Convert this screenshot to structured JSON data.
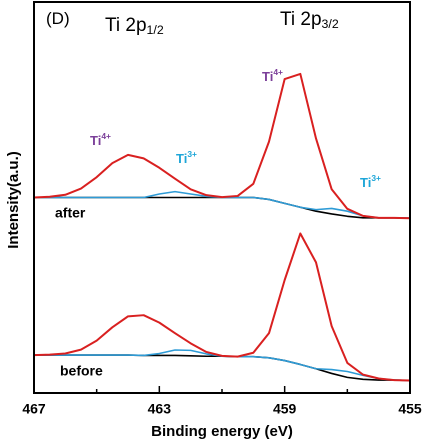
{
  "chart_data": {
    "type": "line",
    "x_label": "Binding energy (eV)",
    "y_label": "Intensity(a.u.)",
    "xlim": [
      467,
      455
    ],
    "xticks": [
      467,
      463,
      459,
      455
    ],
    "xminor_ticks": [
      465,
      461,
      457
    ],
    "ylim": [
      0,
      100
    ],
    "x": [
      467,
      466.5,
      466,
      465.5,
      465,
      464.5,
      464,
      463.5,
      463,
      462.5,
      462,
      461.5,
      461,
      460.5,
      460,
      459.5,
      459,
      458.5,
      458,
      457.5,
      457,
      456.5,
      456,
      455.5,
      455
    ],
    "series": [
      {
        "color": "#000000",
        "values": [
          50,
          50,
          50,
          50,
          50,
          50,
          50,
          50,
          50,
          50,
          50,
          50,
          50,
          50,
          50,
          49.5,
          48.5,
          47.5,
          46.5,
          45.8,
          45.2,
          44.8,
          44.8,
          44.8,
          44.7
        ]
      },
      {
        "color": "#2e9bd6",
        "values": [
          50,
          50,
          50,
          50,
          50,
          50,
          50,
          50,
          50.9,
          51.5,
          50.9,
          50.3,
          50,
          50,
          50,
          49.5,
          48.5,
          47.5,
          46.9,
          47.2,
          46.5,
          45.3,
          44.8,
          44.8,
          44.7
        ]
      },
      {
        "name": "after",
        "color": "#d92020",
        "values": [
          50,
          50.2,
          50.7,
          52.3,
          55.2,
          58.8,
          60.9,
          60,
          57.6,
          54.8,
          52.1,
          50.6,
          50.1,
          50.4,
          53.5,
          64.3,
          80.3,
          81.6,
          65.1,
          52.1,
          47.1,
          45.3,
          44.8,
          44.8,
          44.7
        ]
      },
      {
        "color": "#000000",
        "values": [
          9.7,
          9.7,
          9.7,
          9.7,
          9.7,
          9.7,
          9.7,
          9.6,
          9.6,
          9.6,
          9.5,
          9.4,
          9.4,
          9.3,
          9.3,
          9,
          8.3,
          7.3,
          6.2,
          5,
          4,
          3.5,
          3.3,
          3.3,
          3.2
        ]
      },
      {
        "color": "#2e9bd6",
        "values": [
          9.7,
          9.7,
          9.7,
          9.7,
          9.7,
          9.7,
          9.7,
          9.6,
          10.1,
          11,
          10.9,
          10,
          9.4,
          9.3,
          9.3,
          9,
          8.3,
          7.3,
          6.2,
          6,
          5.5,
          4.5,
          3.7,
          3.3,
          3.2
        ]
      },
      {
        "name": "before",
        "color": "#d92020",
        "values": [
          9.7,
          9.8,
          10.1,
          11.1,
          13.4,
          16.8,
          19.6,
          19.9,
          18,
          15.3,
          12.7,
          10.5,
          9.5,
          9.3,
          10.3,
          15.3,
          28.9,
          40.8,
          33.4,
          17.1,
          7.7,
          4.7,
          3.7,
          3.3,
          3.2
        ]
      }
    ],
    "annotations": [
      {
        "text": "(D)"
      },
      {
        "text": "Ti 2p",
        "sub": "1/2"
      },
      {
        "text": "Ti 2p",
        "sub": "3/2"
      },
      {
        "text": "Ti",
        "sup": "4+"
      },
      {
        "text": "Ti",
        "sup": "4+"
      },
      {
        "text": "Ti",
        "sup": "3+"
      },
      {
        "text": "Ti",
        "sup": "3+"
      }
    ]
  }
}
